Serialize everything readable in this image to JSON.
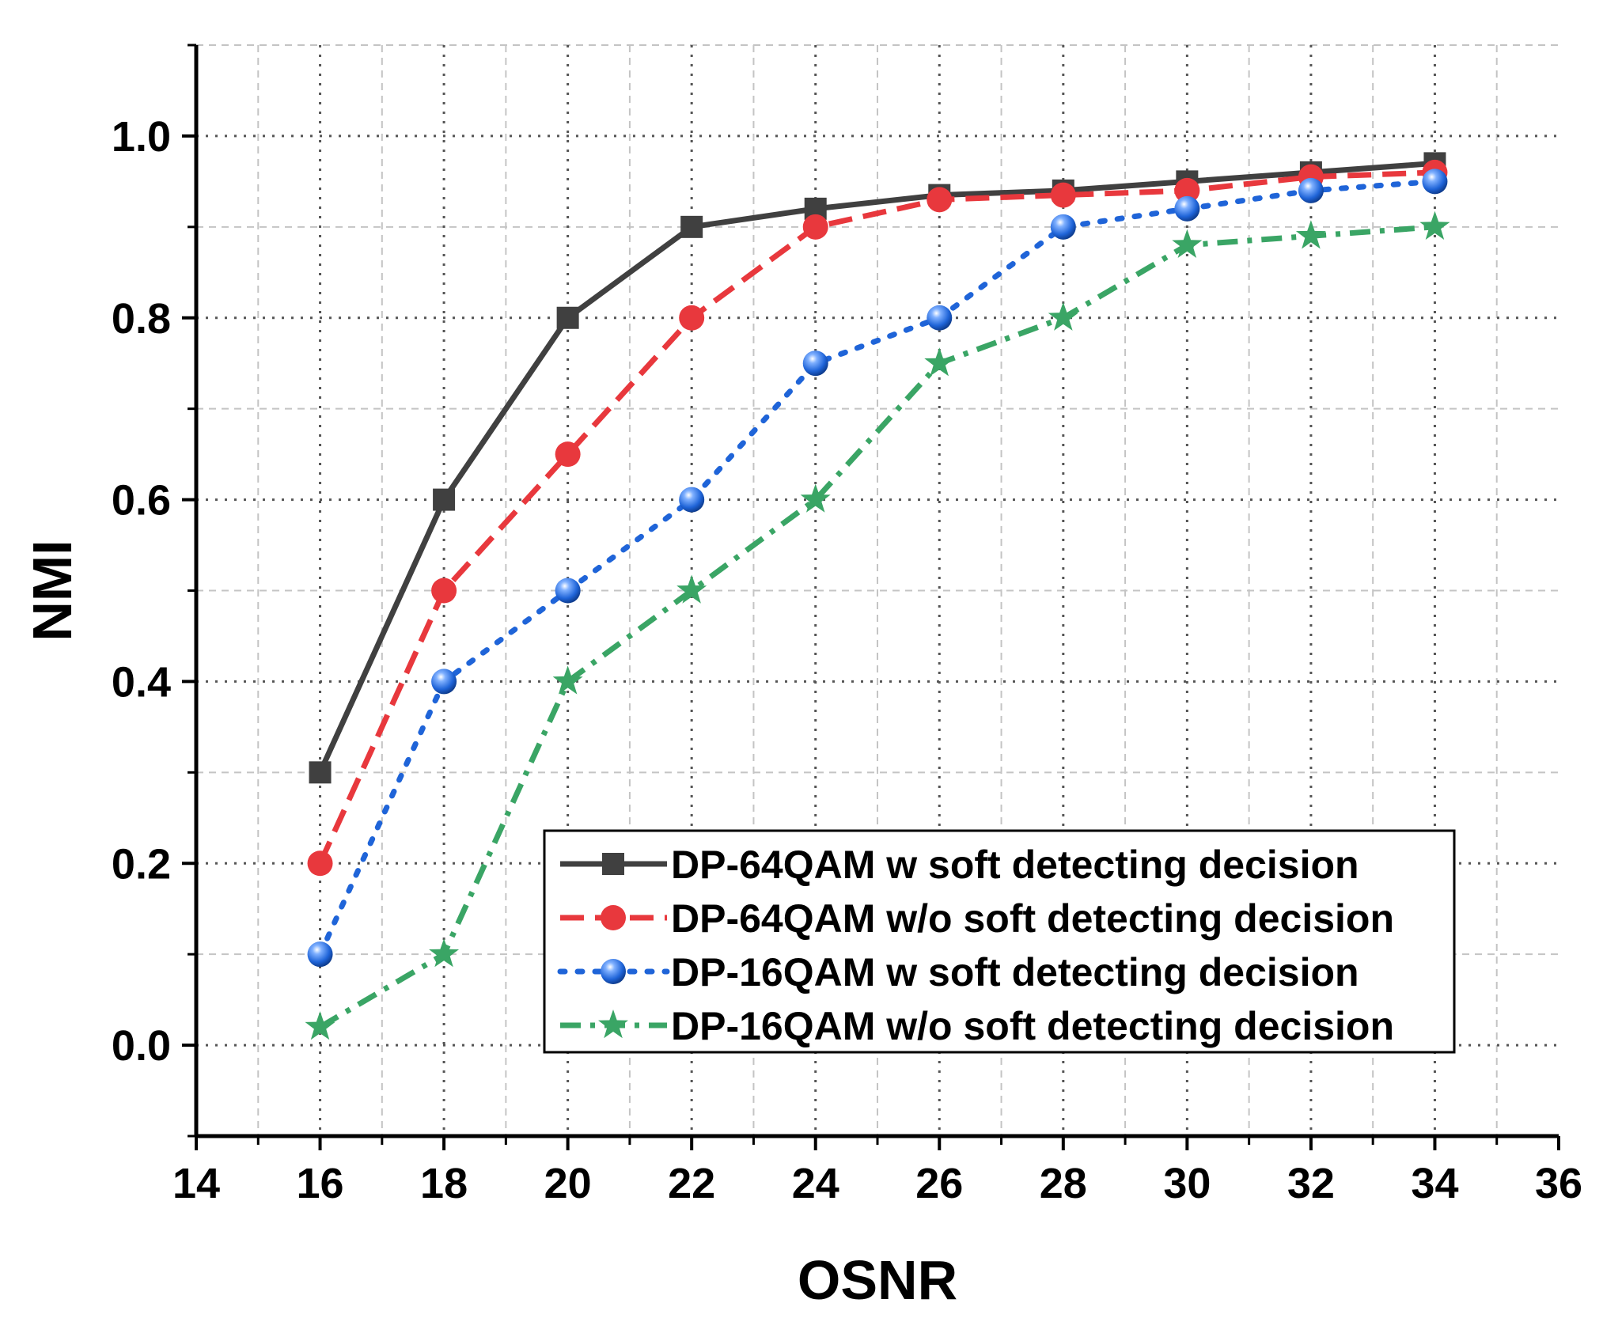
{
  "chart_data": {
    "type": "line",
    "xlabel": "OSNR",
    "ylabel": "NMI",
    "xlim": [
      14,
      36
    ],
    "ylim": [
      -0.1,
      1.1
    ],
    "x_ticks": [
      "14",
      "16",
      "18",
      "20",
      "22",
      "24",
      "26",
      "28",
      "30",
      "32",
      "34",
      "36"
    ],
    "y_ticks": [
      "0.0",
      "0.2",
      "0.4",
      "0.6",
      "0.8",
      "1.0"
    ],
    "grid": true,
    "legend_position": "bottom-right",
    "x": [
      16,
      18,
      20,
      22,
      24,
      26,
      28,
      30,
      32,
      34
    ],
    "series": [
      {
        "name": "DP-64QAM w soft detecting decision",
        "color": "#404040",
        "marker": "square",
        "line_style": "solid",
        "values": [
          0.3,
          0.6,
          0.8,
          0.9,
          0.92,
          0.935,
          0.94,
          0.95,
          0.96,
          0.97
        ]
      },
      {
        "name": "DP-64QAM w/o soft detecting decision",
        "color": "#e8383d",
        "marker": "circle",
        "line_style": "dashed",
        "values": [
          0.2,
          0.5,
          0.65,
          0.8,
          0.9,
          0.93,
          0.935,
          0.94,
          0.955,
          0.96
        ]
      },
      {
        "name": "DP-16QAM w soft detecting decision",
        "color": "#1f64d8",
        "marker": "sphere",
        "line_style": "dotted",
        "values": [
          0.1,
          0.4,
          0.5,
          0.6,
          0.75,
          0.8,
          0.9,
          0.92,
          0.94,
          0.95
        ]
      },
      {
        "name": "DP-16QAM w/o soft detecting decision",
        "color": "#3aa565",
        "marker": "star",
        "line_style": "dash-dot",
        "values": [
          0.02,
          0.1,
          0.4,
          0.5,
          0.6,
          0.75,
          0.8,
          0.88,
          0.89,
          0.9
        ]
      }
    ]
  }
}
